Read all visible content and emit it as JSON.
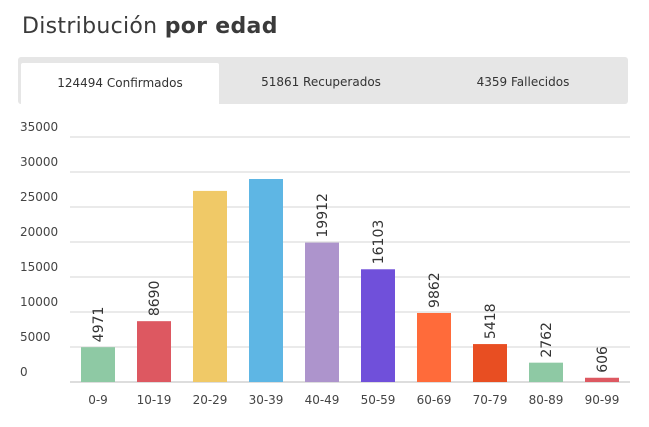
{
  "header": {
    "title_regular": "Distribución",
    "title_bold": "por edad"
  },
  "tabs": [
    {
      "label": "124494 Confirmados",
      "active": true
    },
    {
      "label": "51861 Recuperados",
      "active": false
    },
    {
      "label": "4359 Fallecidos",
      "active": false
    }
  ],
  "chart_data": {
    "type": "bar",
    "title": "",
    "xlabel": "",
    "ylabel": "",
    "categories": [
      "0-9",
      "10-19",
      "20-29",
      "30-39",
      "40-49",
      "50-59",
      "60-69",
      "70-79",
      "80-89",
      "90-99"
    ],
    "values": [
      4971,
      8690,
      27300,
      29000,
      19912,
      16103,
      9862,
      5418,
      2762,
      606
    ],
    "data_labels": [
      "4971",
      "8690",
      "",
      "",
      "19912",
      "16103",
      "9862",
      "5418",
      "2762",
      "606"
    ],
    "colors": [
      "#8ec9a4",
      "#dd5861",
      "#f0c967",
      "#5eb6e4",
      "#ad94cc",
      "#7050da",
      "#ff6b3a",
      "#e84e22",
      "#8ec9a4",
      "#dd5861"
    ],
    "yticks": [
      "0",
      "5000",
      "10000",
      "15000",
      "20000",
      "25000",
      "30000",
      "35000"
    ],
    "ylim": [
      0,
      35000
    ],
    "grid": true,
    "legend": "none"
  }
}
